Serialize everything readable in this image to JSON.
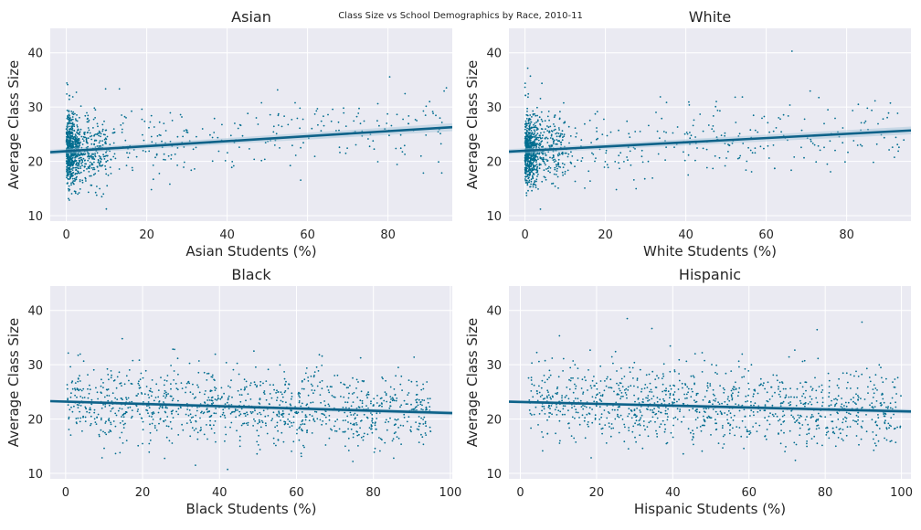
{
  "figure_title": "Class Size vs School Demographics by Race, 2010-11",
  "colors": {
    "panel_bg": "#eaeaf2",
    "grid": "#ffffff",
    "point": "#006d8f",
    "line": "#0e6289",
    "band": "#9fc3d6"
  },
  "chart_data": [
    {
      "type": "scatter",
      "title": "Asian",
      "xlabel": "Asian Students (%)",
      "ylabel": "Average Class Size",
      "xlim": [
        -4,
        96
      ],
      "ylim": [
        9,
        44.5
      ],
      "xticks": [
        0,
        20,
        40,
        60,
        80
      ],
      "yticks": [
        10,
        20,
        30,
        40
      ],
      "grid": true,
      "trend": {
        "x": [
          -4,
          96
        ],
        "y": [
          21.7,
          26.3
        ]
      },
      "point_profile": {
        "concentration": "x near 0-5",
        "x_range": [
          0,
          95
        ],
        "y_typical": [
          15,
          30
        ]
      }
    },
    {
      "type": "scatter",
      "title": "White",
      "xlabel": "White Students (%)",
      "ylabel": "Average Class Size",
      "xlim": [
        -4,
        96
      ],
      "ylim": [
        9,
        44.5
      ],
      "xticks": [
        0,
        20,
        40,
        60,
        80
      ],
      "yticks": [
        10,
        20,
        30,
        40
      ],
      "grid": true,
      "trend": {
        "x": [
          -4,
          96
        ],
        "y": [
          21.8,
          25.7
        ]
      },
      "point_profile": {
        "concentration": "x near 0-5",
        "x_range": [
          0,
          95
        ],
        "y_typical": [
          15,
          30
        ]
      }
    },
    {
      "type": "scatter",
      "title": "Black",
      "xlabel": "Black Students (%)",
      "ylabel": "Average Class Size",
      "xlim": [
        -4,
        100.5
      ],
      "ylim": [
        9,
        44.5
      ],
      "xticks": [
        0,
        20,
        40,
        60,
        80,
        100
      ],
      "yticks": [
        10,
        20,
        30,
        40
      ],
      "grid": true,
      "trend": {
        "x": [
          -4,
          100.5
        ],
        "y": [
          23.3,
          21.1
        ]
      },
      "point_profile": {
        "concentration": "uniform",
        "x_range": [
          0,
          95
        ],
        "y_typical": [
          15,
          30
        ]
      }
    },
    {
      "type": "scatter",
      "title": "Hispanic",
      "xlabel": "Hispanic Students (%)",
      "ylabel": "Average Class Size",
      "xlim": [
        -3,
        102.5
      ],
      "ylim": [
        9,
        44.5
      ],
      "xticks": [
        0,
        20,
        40,
        60,
        80,
        100
      ],
      "yticks": [
        10,
        20,
        30,
        40
      ],
      "grid": true,
      "trend": {
        "x": [
          -3,
          102.5
        ],
        "y": [
          23.2,
          21.4
        ]
      },
      "point_profile": {
        "concentration": "uniform",
        "x_range": [
          2,
          100
        ],
        "y_typical": [
          15,
          30
        ]
      }
    }
  ]
}
